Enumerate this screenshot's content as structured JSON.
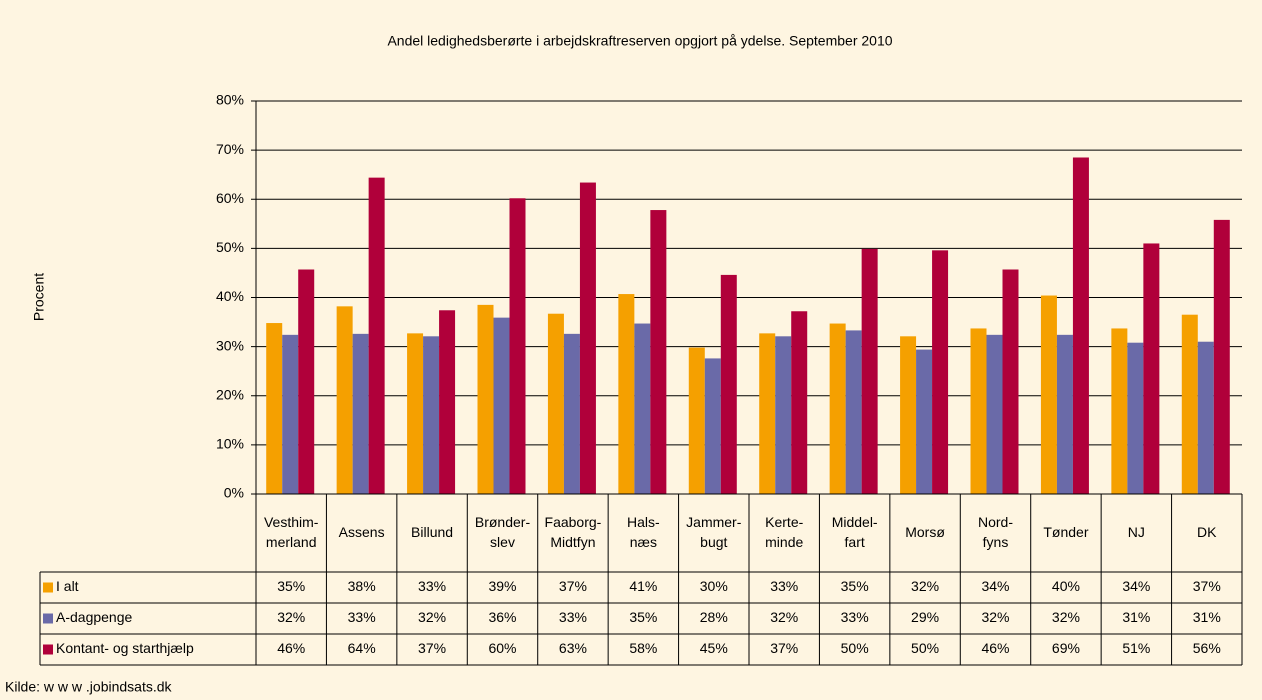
{
  "chart_data": {
    "type": "bar",
    "title": "Andel ledighedsberørte i arbejdskraftreserven opgjort på ydelse. September 2010",
    "ylabel": "Procent",
    "source": "Kilde: w w w .jobindsats.dk",
    "categories": [
      "Vesthim-\nmerland",
      "Assens",
      "Billund",
      "Brønder-\nslev",
      "Faaborg-\nMidtfyn",
      "Hals-\nnæs",
      "Jammer-\nbugt",
      "Kerte-\nminde",
      "Middel-\nfart",
      "Morsø",
      "Nord-\nfyns",
      "Tønder",
      "NJ",
      "DK"
    ],
    "series": [
      {
        "name": "I alt",
        "color": "#f5a000",
        "values": [
          34.8,
          38.2,
          32.7,
          38.5,
          36.7,
          40.7,
          29.8,
          32.7,
          34.7,
          32.1,
          33.7,
          40.4,
          33.7,
          36.5
        ],
        "value_labels": [
          "35%",
          "38%",
          "33%",
          "39%",
          "37%",
          "41%",
          "30%",
          "33%",
          "35%",
          "32%",
          "34%",
          "40%",
          "34%",
          "37%"
        ]
      },
      {
        "name": "A-dagpenge",
        "color": "#6a6aa8",
        "values": [
          32.4,
          32.6,
          32.1,
          35.9,
          32.6,
          34.7,
          27.6,
          32.1,
          33.3,
          29.4,
          32.4,
          32.4,
          30.8,
          31.0
        ],
        "value_labels": [
          "32%",
          "33%",
          "32%",
          "36%",
          "33%",
          "35%",
          "28%",
          "32%",
          "33%",
          "29%",
          "32%",
          "32%",
          "31%",
          "31%"
        ]
      },
      {
        "name": "Kontant- og starthjælp",
        "color": "#b0003a",
        "values": [
          45.7,
          64.4,
          37.4,
          60.2,
          63.4,
          57.8,
          44.6,
          37.2,
          49.9,
          49.6,
          45.7,
          68.5,
          51.0,
          55.8
        ],
        "value_labels": [
          "46%",
          "64%",
          "37%",
          "60%",
          "63%",
          "58%",
          "45%",
          "37%",
          "50%",
          "50%",
          "46%",
          "69%",
          "51%",
          "56%"
        ]
      }
    ],
    "ylim": [
      0,
      80
    ],
    "yticks": [
      {
        "value": 0,
        "label": "0%"
      },
      {
        "value": 10,
        "label": "10%"
      },
      {
        "value": 20,
        "label": "20%"
      },
      {
        "value": 30,
        "label": "30%"
      },
      {
        "value": 40,
        "label": "40%"
      },
      {
        "value": 50,
        "label": "50%"
      },
      {
        "value": 60,
        "label": "60%"
      },
      {
        "value": 70,
        "label": "70%"
      },
      {
        "value": 80,
        "label": "80%"
      }
    ],
    "grid": true
  }
}
